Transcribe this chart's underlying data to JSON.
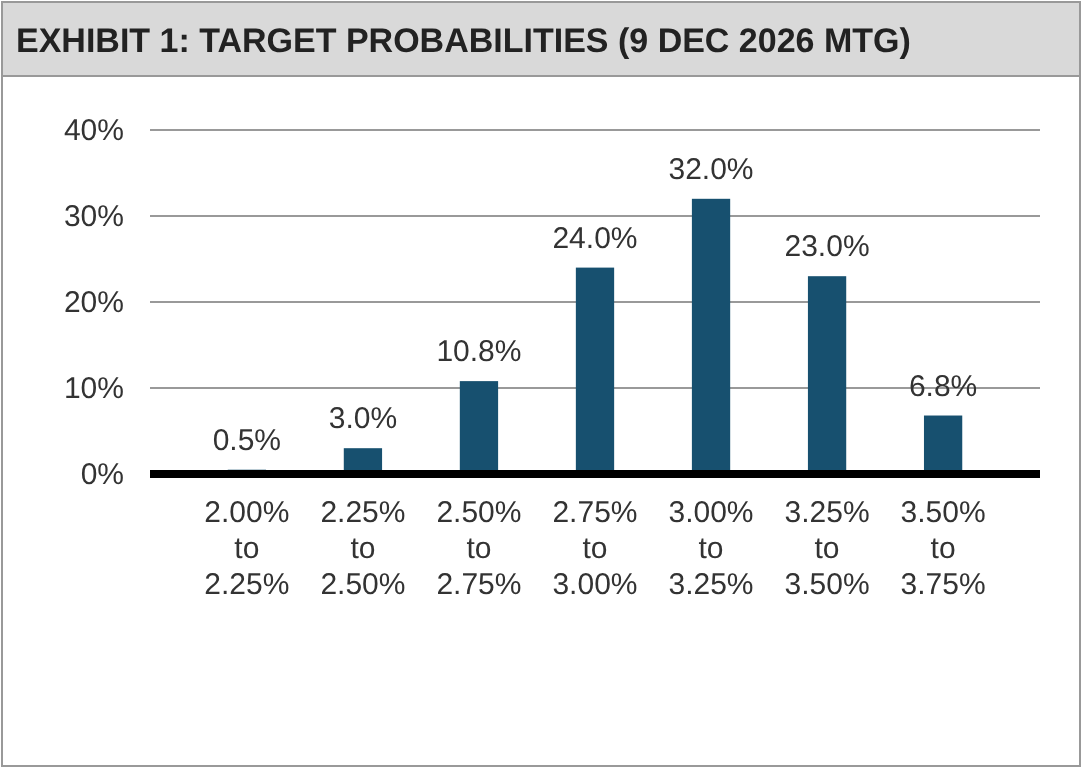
{
  "chart_data": {
    "type": "bar",
    "title": "EXHIBIT 1: TARGET PROBABILITIES (9 DEC 2026 MTG)",
    "categories": [
      "2.00% to 2.25%",
      "2.25% to 2.50%",
      "2.50% to 2.75%",
      "2.75% to 3.00%",
      "3.00% to 3.25%",
      "3.25% to 3.50%",
      "3.50% to 3.75%"
    ],
    "values": [
      0.5,
      3.0,
      10.8,
      24.0,
      32.0,
      23.0,
      6.8
    ],
    "value_labels": [
      "0.5%",
      "3.0%",
      "10.8%",
      "24.0%",
      "32.0%",
      "23.0%",
      "6.8%"
    ],
    "color": "#17506f",
    "ylim": [
      0,
      40
    ],
    "yticks": [
      {
        "value": 0,
        "label": "0%"
      },
      {
        "value": 10,
        "label": "10%"
      },
      {
        "value": 20,
        "label": "20%"
      },
      {
        "value": 30,
        "label": "30%"
      },
      {
        "value": 40,
        "label": "40%"
      }
    ],
    "grid": "y"
  }
}
